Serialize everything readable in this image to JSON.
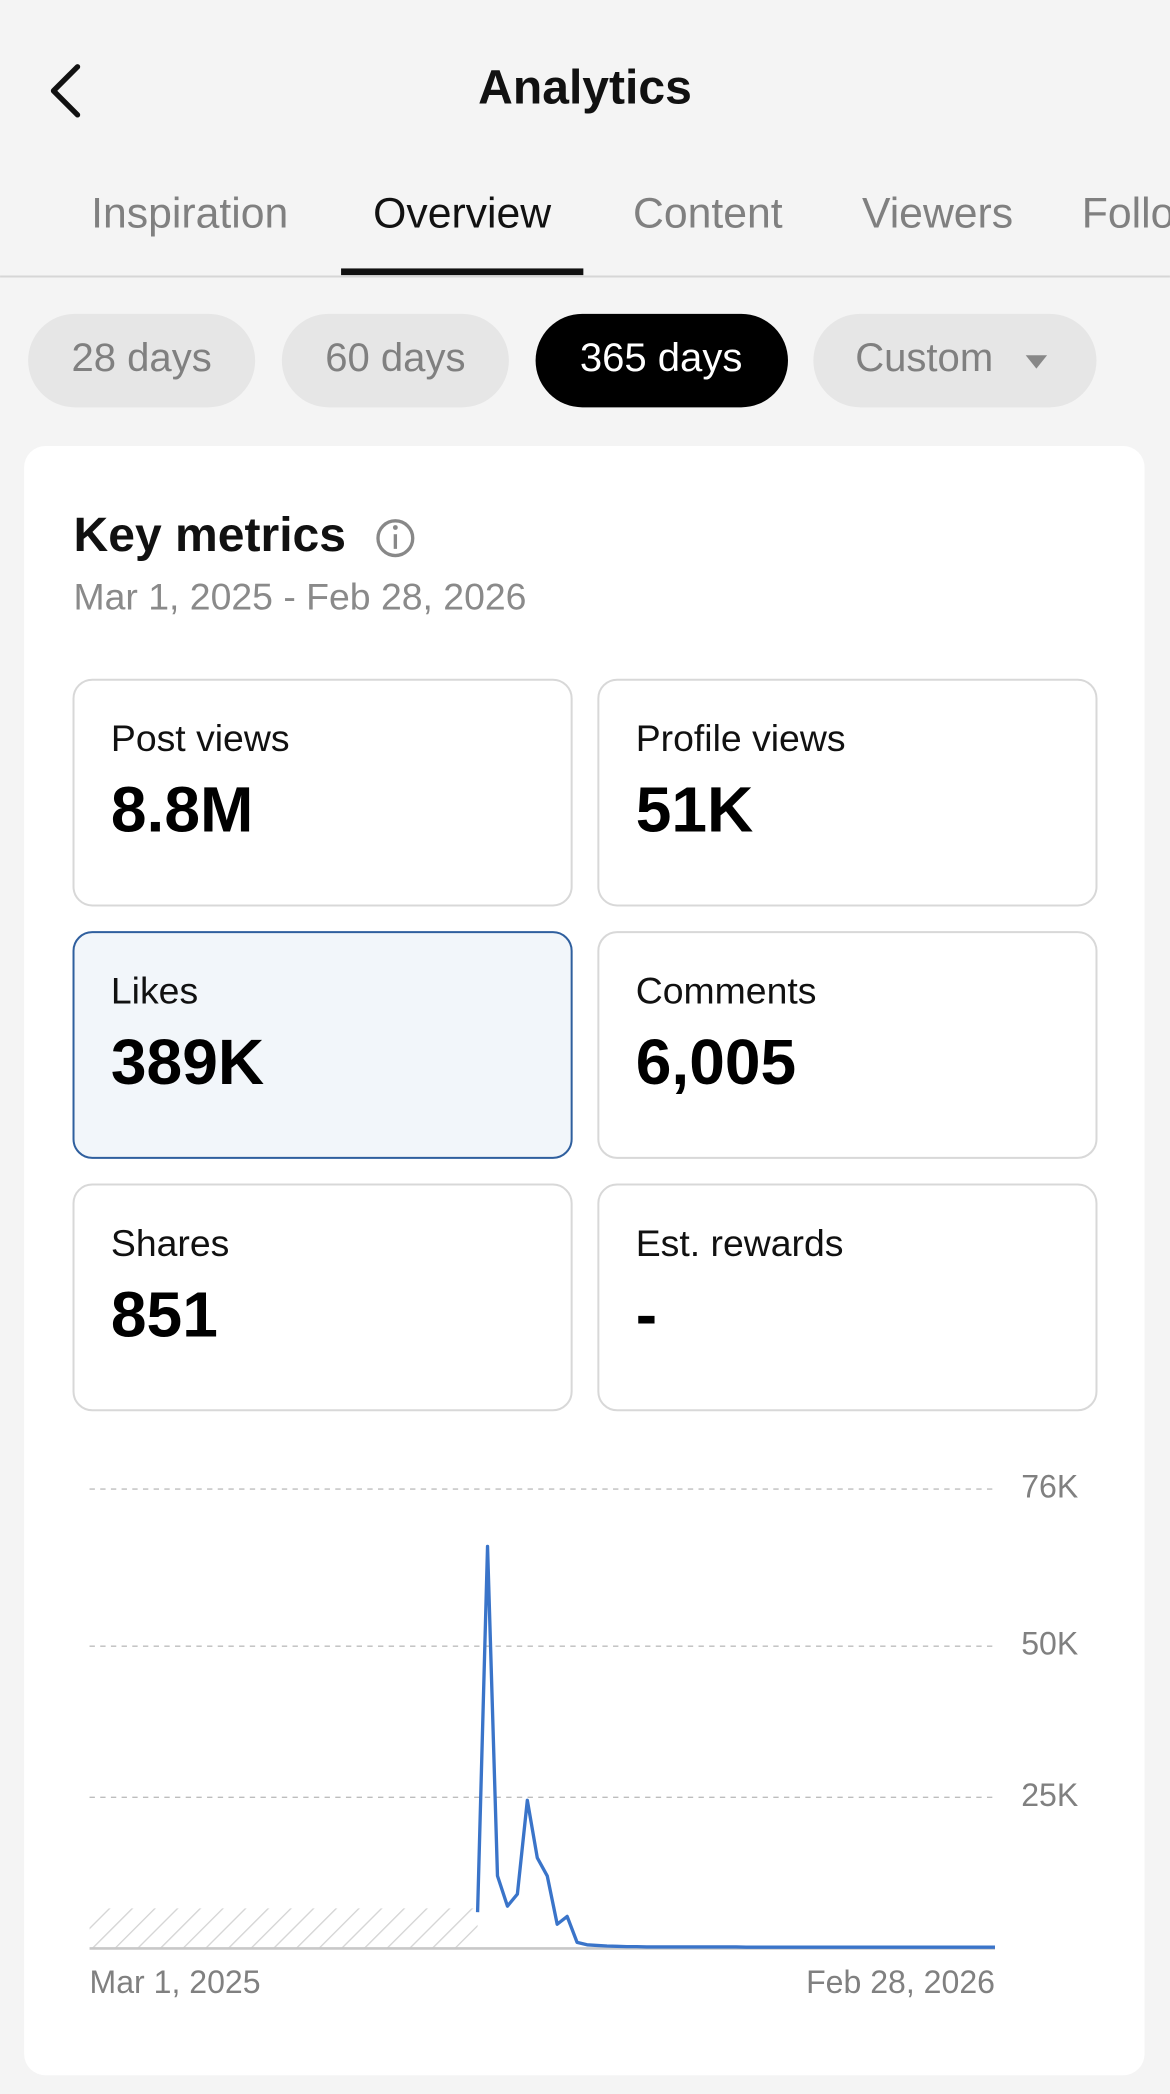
{
  "header": {
    "title": "Analytics"
  },
  "tabs": [
    {
      "label": "Inspiration",
      "active": false
    },
    {
      "label": "Overview",
      "active": true
    },
    {
      "label": "Content",
      "active": false
    },
    {
      "label": "Viewers",
      "active": false
    },
    {
      "label": "Followers",
      "active": false
    }
  ],
  "periods": [
    {
      "label": "28 days",
      "active": false
    },
    {
      "label": "60 days",
      "active": false
    },
    {
      "label": "365 days",
      "active": true
    },
    {
      "label": "Custom",
      "active": false
    }
  ],
  "key_metrics": {
    "title": "Key metrics",
    "date_range": "Mar 1, 2025 - Feb 28, 2026",
    "tiles": [
      {
        "label": "Post views",
        "value": "8.8M",
        "selected": false
      },
      {
        "label": "Profile views",
        "value": "51K",
        "selected": false
      },
      {
        "label": "Likes",
        "value": "389K",
        "selected": true
      },
      {
        "label": "Comments",
        "value": "6,005",
        "selected": false
      },
      {
        "label": "Shares",
        "value": "851",
        "selected": false
      },
      {
        "label": "Est. rewards",
        "value": "-",
        "selected": false
      }
    ]
  },
  "chart_data": {
    "type": "line",
    "color": "#3a74c9",
    "grid": true,
    "ylim": [
      0,
      76000
    ],
    "yticks": [
      {
        "value": 25000,
        "label": "25K"
      },
      {
        "value": 50000,
        "label": "50K"
      },
      {
        "value": 76000,
        "label": "76K"
      }
    ],
    "categories": [
      "Mar 1, 2025",
      null,
      null,
      null,
      null,
      null,
      null,
      null,
      null,
      null,
      null,
      null,
      null,
      null,
      null,
      null,
      null,
      null,
      null,
      null,
      null,
      null,
      null,
      null,
      null,
      null,
      null,
      null,
      null,
      null,
      null,
      null,
      null,
      null,
      null,
      null,
      null,
      null,
      null,
      null,
      null,
      null,
      null,
      null,
      null,
      null,
      null,
      null,
      null,
      null,
      null,
      null,
      null,
      null,
      null,
      null,
      null,
      null,
      null,
      null,
      null,
      null,
      null,
      null,
      null,
      null,
      null,
      null,
      null,
      null,
      null,
      null,
      null,
      null,
      null,
      null,
      null,
      null,
      null,
      null,
      null,
      null,
      null,
      null,
      null,
      null,
      null,
      null,
      null,
      null,
      null,
      "Feb 28, 2026"
    ],
    "values": [
      null,
      null,
      null,
      null,
      null,
      null,
      null,
      null,
      null,
      null,
      null,
      null,
      null,
      null,
      null,
      null,
      null,
      null,
      null,
      null,
      null,
      null,
      null,
      null,
      null,
      null,
      null,
      null,
      null,
      null,
      null,
      null,
      null,
      null,
      null,
      null,
      null,
      null,
      null,
      6000,
      66500,
      12000,
      7000,
      9000,
      24500,
      15000,
      12000,
      4000,
      5300,
      1000,
      600,
      500,
      400,
      350,
      300,
      300,
      250,
      250,
      250,
      250,
      250,
      250,
      250,
      250,
      250,
      250,
      200,
      200,
      200,
      200,
      200,
      200,
      200,
      200,
      200,
      200,
      200,
      200,
      200,
      200,
      200,
      200,
      200,
      200,
      200,
      200,
      200,
      200,
      200,
      200,
      200,
      200
    ]
  }
}
